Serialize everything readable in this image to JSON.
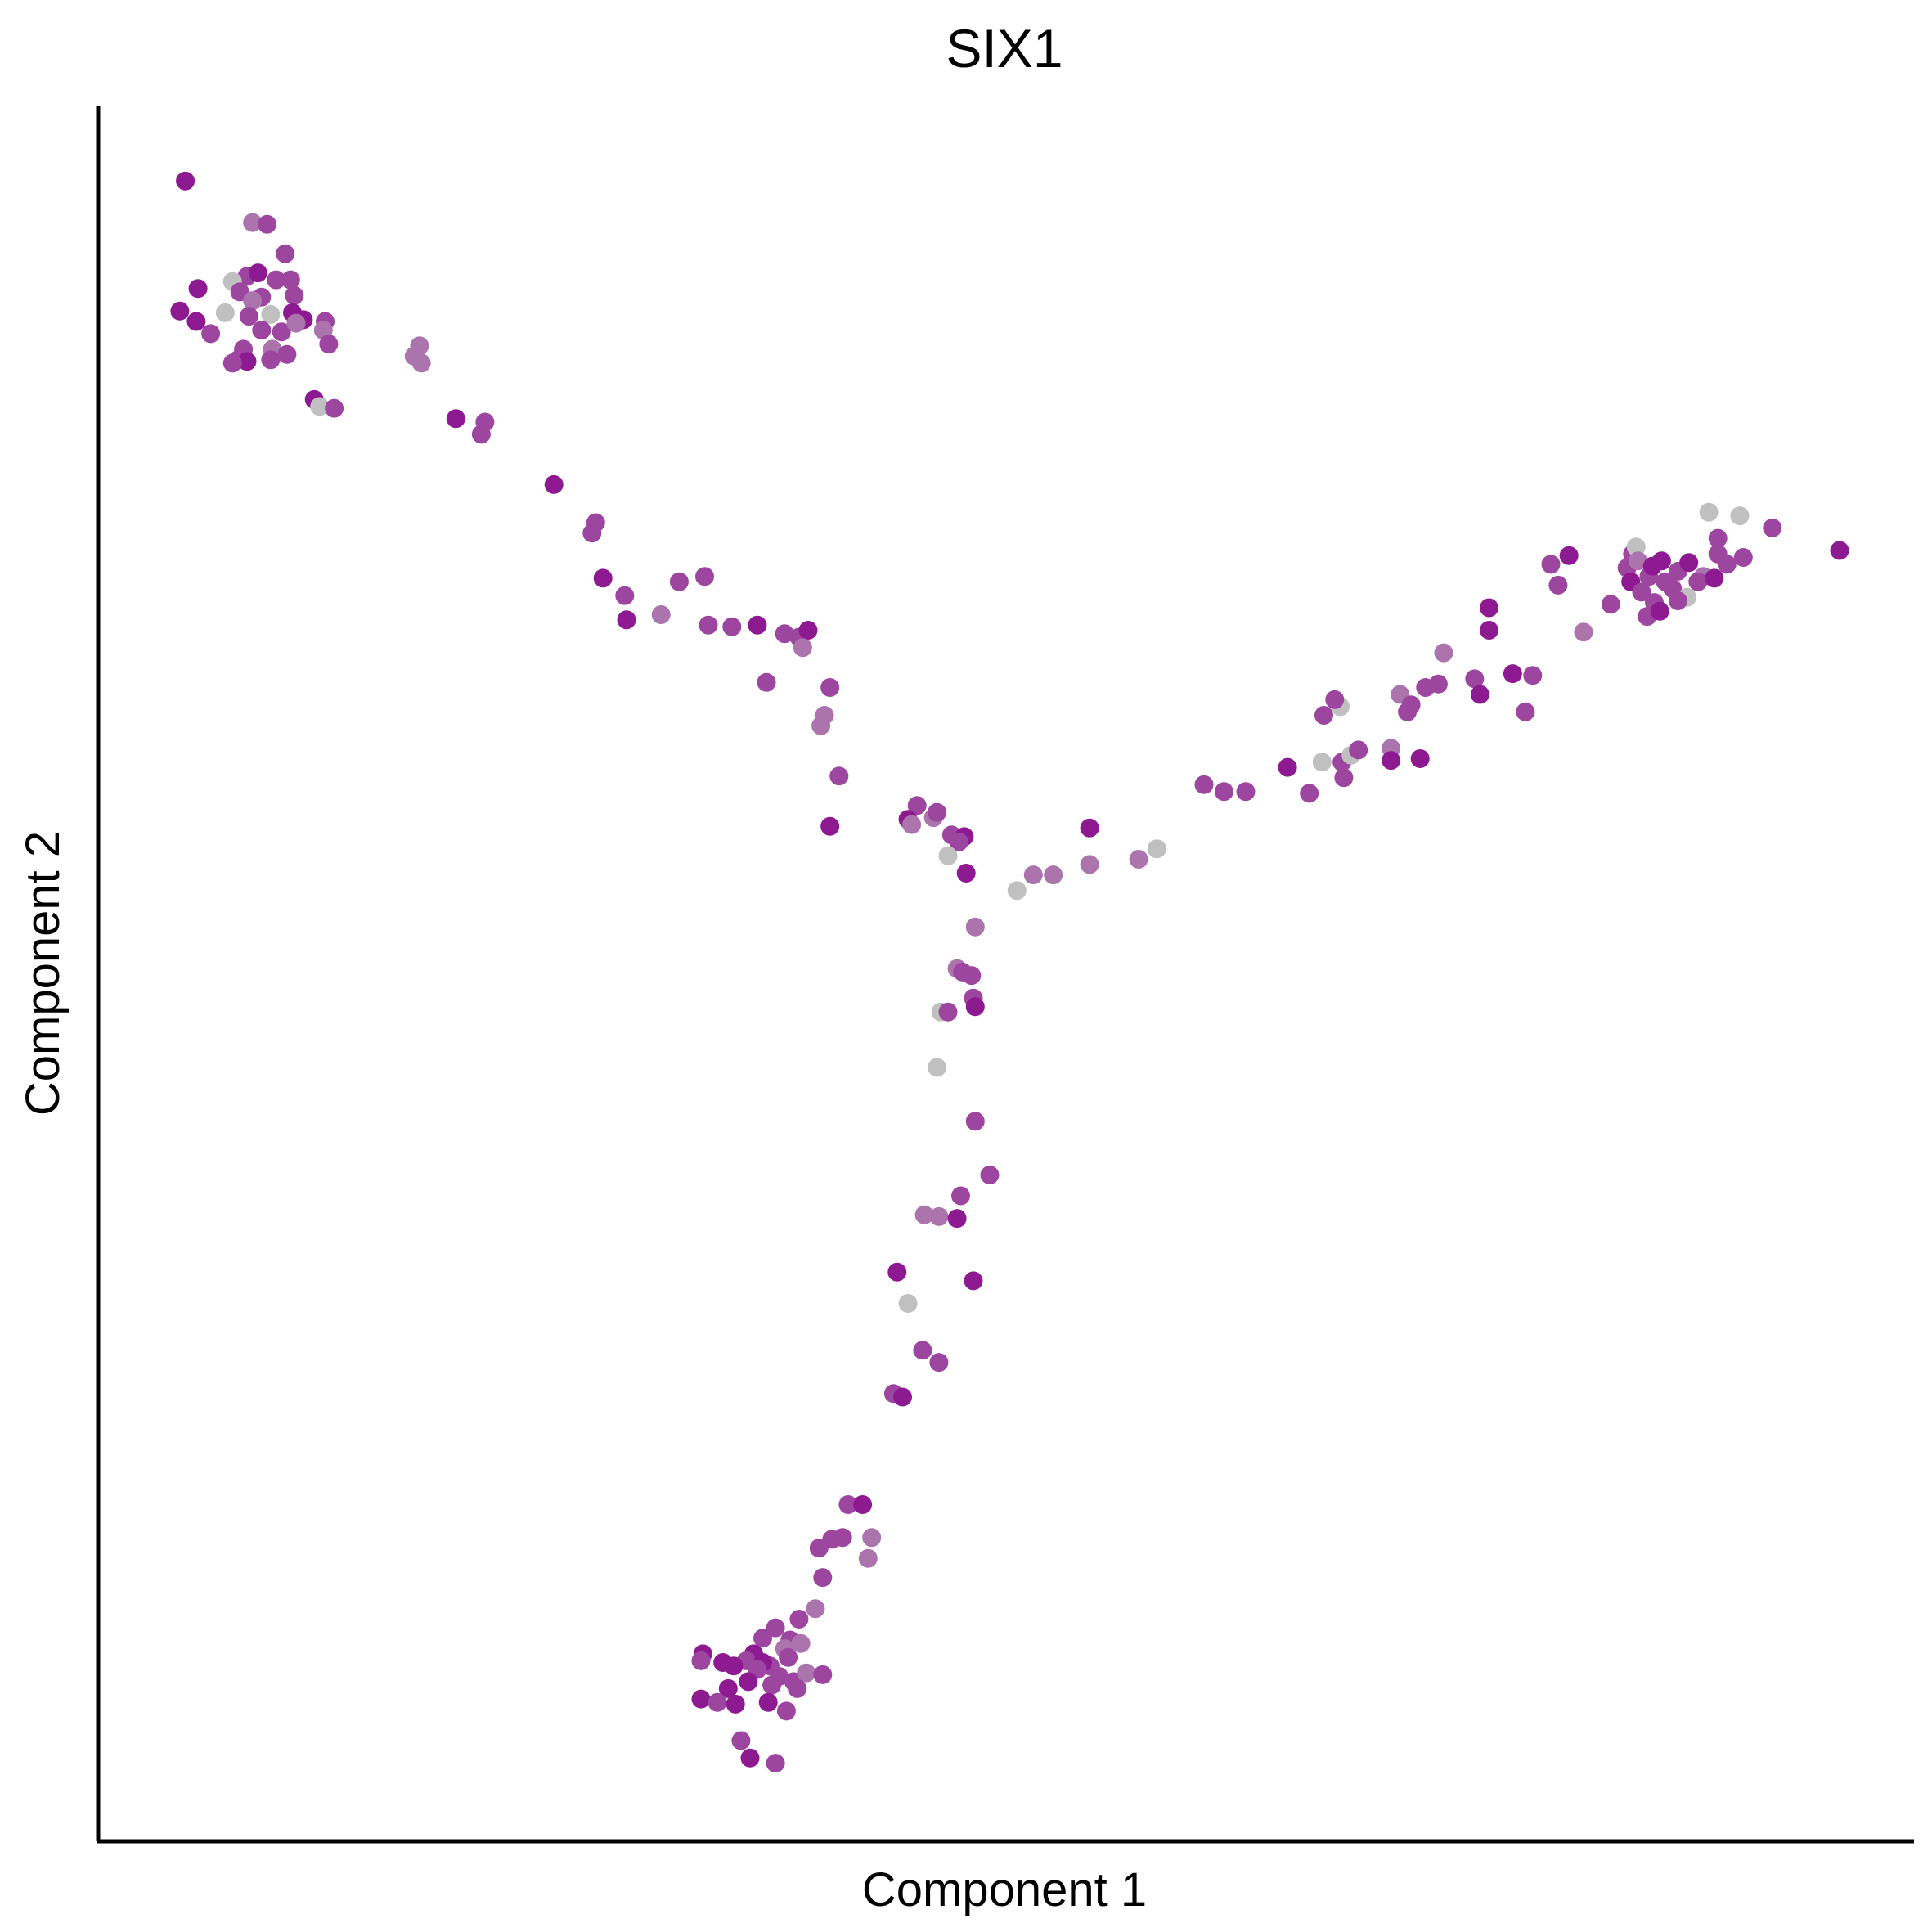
{
  "chart_data": {
    "type": "scatter",
    "title": "SIX1",
    "xlabel": "Component 1",
    "ylabel": "Component 2",
    "xlim": [
      0,
      100
    ],
    "ylim": [
      0,
      100
    ],
    "ticks": false,
    "grid": false,
    "legend": "none",
    "colors": {
      "high": "#8e1a92",
      "mid": "#9c46a0",
      "low": "#ab74ad",
      "zero": "#c0c0c0",
      "axis": "#000000",
      "background": "#ffffff"
    },
    "points": [
      {
        "x": 4.8,
        "y": 95.7,
        "level": "high"
      },
      {
        "x": 8.5,
        "y": 93.3,
        "level": "low"
      },
      {
        "x": 9.3,
        "y": 93.2,
        "level": "mid"
      },
      {
        "x": 10.3,
        "y": 91.5,
        "level": "mid"
      },
      {
        "x": 8.2,
        "y": 90.2,
        "level": "mid"
      },
      {
        "x": 8.8,
        "y": 90.4,
        "level": "high"
      },
      {
        "x": 7.4,
        "y": 89.9,
        "level": "zero"
      },
      {
        "x": 9.8,
        "y": 90.0,
        "level": "mid"
      },
      {
        "x": 10.6,
        "y": 90.0,
        "level": "mid"
      },
      {
        "x": 5.5,
        "y": 89.5,
        "level": "high"
      },
      {
        "x": 7.8,
        "y": 89.3,
        "level": "mid"
      },
      {
        "x": 9.0,
        "y": 89.0,
        "level": "mid"
      },
      {
        "x": 10.8,
        "y": 89.1,
        "level": "mid"
      },
      {
        "x": 8.5,
        "y": 88.8,
        "level": "low"
      },
      {
        "x": 4.5,
        "y": 88.2,
        "level": "high"
      },
      {
        "x": 7.0,
        "y": 88.1,
        "level": "zero"
      },
      {
        "x": 8.3,
        "y": 87.9,
        "level": "mid"
      },
      {
        "x": 9.5,
        "y": 88.0,
        "level": "zero"
      },
      {
        "x": 10.7,
        "y": 88.1,
        "level": "high"
      },
      {
        "x": 11.3,
        "y": 87.7,
        "level": "high"
      },
      {
        "x": 5.4,
        "y": 87.6,
        "level": "high"
      },
      {
        "x": 6.2,
        "y": 86.9,
        "level": "mid"
      },
      {
        "x": 9.0,
        "y": 87.1,
        "level": "mid"
      },
      {
        "x": 10.1,
        "y": 87.0,
        "level": "mid"
      },
      {
        "x": 12.5,
        "y": 87.6,
        "level": "mid"
      },
      {
        "x": 12.4,
        "y": 87.1,
        "level": "low"
      },
      {
        "x": 10.9,
        "y": 87.5,
        "level": "low"
      },
      {
        "x": 8.0,
        "y": 86.0,
        "level": "mid"
      },
      {
        "x": 9.6,
        "y": 86.0,
        "level": "low"
      },
      {
        "x": 10.4,
        "y": 85.7,
        "level": "mid"
      },
      {
        "x": 12.7,
        "y": 86.3,
        "level": "mid"
      },
      {
        "x": 7.7,
        "y": 85.4,
        "level": "mid"
      },
      {
        "x": 8.2,
        "y": 85.3,
        "level": "high"
      },
      {
        "x": 9.5,
        "y": 85.4,
        "level": "mid"
      },
      {
        "x": 7.4,
        "y": 85.2,
        "level": "mid"
      },
      {
        "x": 11.9,
        "y": 83.1,
        "level": "high"
      },
      {
        "x": 12.2,
        "y": 82.7,
        "level": "zero"
      },
      {
        "x": 13.0,
        "y": 82.6,
        "level": "mid"
      },
      {
        "x": 17.7,
        "y": 86.2,
        "level": "low"
      },
      {
        "x": 17.4,
        "y": 85.6,
        "level": "low"
      },
      {
        "x": 17.8,
        "y": 85.2,
        "level": "low"
      },
      {
        "x": 19.7,
        "y": 82.0,
        "level": "high"
      },
      {
        "x": 21.3,
        "y": 81.8,
        "level": "mid"
      },
      {
        "x": 21.1,
        "y": 81.1,
        "level": "mid"
      },
      {
        "x": 25.1,
        "y": 78.2,
        "level": "high"
      },
      {
        "x": 27.4,
        "y": 76.0,
        "level": "mid"
      },
      {
        "x": 27.2,
        "y": 75.4,
        "level": "mid"
      },
      {
        "x": 27.8,
        "y": 72.8,
        "level": "high"
      },
      {
        "x": 29.0,
        "y": 71.8,
        "level": "mid"
      },
      {
        "x": 29.1,
        "y": 70.4,
        "level": "high"
      },
      {
        "x": 31.0,
        "y": 70.7,
        "level": "low"
      },
      {
        "x": 32.0,
        "y": 72.6,
        "level": "mid"
      },
      {
        "x": 33.4,
        "y": 72.9,
        "level": "mid"
      },
      {
        "x": 33.6,
        "y": 70.1,
        "level": "mid"
      },
      {
        "x": 34.9,
        "y": 70.0,
        "level": "mid"
      },
      {
        "x": 36.3,
        "y": 70.1,
        "level": "high"
      },
      {
        "x": 37.8,
        "y": 69.6,
        "level": "mid"
      },
      {
        "x": 38.6,
        "y": 69.4,
        "level": "mid"
      },
      {
        "x": 39.1,
        "y": 69.8,
        "level": "high"
      },
      {
        "x": 38.8,
        "y": 68.8,
        "level": "low"
      },
      {
        "x": 36.8,
        "y": 66.8,
        "level": "mid"
      },
      {
        "x": 40.3,
        "y": 66.5,
        "level": "mid"
      },
      {
        "x": 40.0,
        "y": 64.9,
        "level": "low"
      },
      {
        "x": 39.8,
        "y": 64.3,
        "level": "low"
      },
      {
        "x": 40.8,
        "y": 61.4,
        "level": "mid"
      },
      {
        "x": 40.3,
        "y": 58.5,
        "level": "high"
      },
      {
        "x": 45.1,
        "y": 59.7,
        "level": "mid"
      },
      {
        "x": 44.6,
        "y": 58.9,
        "level": "high"
      },
      {
        "x": 44.8,
        "y": 58.6,
        "level": "low"
      },
      {
        "x": 46.0,
        "y": 59.0,
        "level": "low"
      },
      {
        "x": 46.2,
        "y": 59.3,
        "level": "mid"
      },
      {
        "x": 47.0,
        "y": 58.0,
        "level": "mid"
      },
      {
        "x": 47.7,
        "y": 57.9,
        "level": "high"
      },
      {
        "x": 47.4,
        "y": 57.6,
        "level": "mid"
      },
      {
        "x": 46.8,
        "y": 56.8,
        "level": "zero"
      },
      {
        "x": 47.8,
        "y": 55.8,
        "level": "high"
      },
      {
        "x": 50.6,
        "y": 54.8,
        "level": "zero"
      },
      {
        "x": 51.5,
        "y": 55.7,
        "level": "low"
      },
      {
        "x": 52.6,
        "y": 55.7,
        "level": "low"
      },
      {
        "x": 54.6,
        "y": 58.4,
        "level": "high"
      },
      {
        "x": 54.6,
        "y": 56.3,
        "level": "low"
      },
      {
        "x": 57.3,
        "y": 56.6,
        "level": "low"
      },
      {
        "x": 58.3,
        "y": 57.2,
        "level": "zero"
      },
      {
        "x": 60.9,
        "y": 60.9,
        "level": "mid"
      },
      {
        "x": 62.0,
        "y": 60.5,
        "level": "mid"
      },
      {
        "x": 63.2,
        "y": 60.5,
        "level": "mid"
      },
      {
        "x": 65.5,
        "y": 61.9,
        "level": "high"
      },
      {
        "x": 66.7,
        "y": 60.4,
        "level": "mid"
      },
      {
        "x": 67.4,
        "y": 62.2,
        "level": "zero"
      },
      {
        "x": 68.5,
        "y": 62.2,
        "level": "mid"
      },
      {
        "x": 69.0,
        "y": 62.6,
        "level": "zero"
      },
      {
        "x": 69.4,
        "y": 62.9,
        "level": "mid"
      },
      {
        "x": 68.6,
        "y": 61.3,
        "level": "mid"
      },
      {
        "x": 68.4,
        "y": 65.4,
        "level": "zero"
      },
      {
        "x": 68.1,
        "y": 65.8,
        "level": "mid"
      },
      {
        "x": 67.5,
        "y": 64.9,
        "level": "mid"
      },
      {
        "x": 71.2,
        "y": 63.0,
        "level": "low"
      },
      {
        "x": 71.2,
        "y": 62.3,
        "level": "high"
      },
      {
        "x": 72.8,
        "y": 62.4,
        "level": "high"
      },
      {
        "x": 71.7,
        "y": 66.1,
        "level": "low"
      },
      {
        "x": 72.3,
        "y": 65.5,
        "level": "mid"
      },
      {
        "x": 72.1,
        "y": 65.1,
        "level": "mid"
      },
      {
        "x": 73.1,
        "y": 66.5,
        "level": "mid"
      },
      {
        "x": 73.8,
        "y": 66.7,
        "level": "mid"
      },
      {
        "x": 74.1,
        "y": 68.5,
        "level": "low"
      },
      {
        "x": 75.8,
        "y": 67.0,
        "level": "mid"
      },
      {
        "x": 76.1,
        "y": 66.1,
        "level": "high"
      },
      {
        "x": 76.6,
        "y": 71.1,
        "level": "high"
      },
      {
        "x": 76.6,
        "y": 69.8,
        "level": "high"
      },
      {
        "x": 77.9,
        "y": 67.3,
        "level": "high"
      },
      {
        "x": 79.0,
        "y": 67.2,
        "level": "mid"
      },
      {
        "x": 78.6,
        "y": 65.1,
        "level": "mid"
      },
      {
        "x": 80.0,
        "y": 73.6,
        "level": "mid"
      },
      {
        "x": 80.4,
        "y": 72.4,
        "level": "mid"
      },
      {
        "x": 81.0,
        "y": 74.1,
        "level": "high"
      },
      {
        "x": 81.8,
        "y": 69.7,
        "level": "low"
      },
      {
        "x": 83.3,
        "y": 71.3,
        "level": "mid"
      },
      {
        "x": 84.2,
        "y": 73.4,
        "level": "mid"
      },
      {
        "x": 84.5,
        "y": 74.2,
        "level": "mid"
      },
      {
        "x": 84.7,
        "y": 74.6,
        "level": "zero"
      },
      {
        "x": 84.8,
        "y": 73.8,
        "level": "low"
      },
      {
        "x": 84.4,
        "y": 72.6,
        "level": "high"
      },
      {
        "x": 85.0,
        "y": 72.0,
        "level": "mid"
      },
      {
        "x": 85.4,
        "y": 72.9,
        "level": "mid"
      },
      {
        "x": 85.6,
        "y": 73.5,
        "level": "high"
      },
      {
        "x": 85.7,
        "y": 71.4,
        "level": "mid"
      },
      {
        "x": 85.3,
        "y": 70.6,
        "level": "mid"
      },
      {
        "x": 86.0,
        "y": 70.9,
        "level": "high"
      },
      {
        "x": 86.3,
        "y": 72.6,
        "level": "mid"
      },
      {
        "x": 86.1,
        "y": 73.8,
        "level": "high"
      },
      {
        "x": 86.7,
        "y": 72.2,
        "level": "mid"
      },
      {
        "x": 87.0,
        "y": 73.2,
        "level": "mid"
      },
      {
        "x": 87.5,
        "y": 71.7,
        "level": "zero"
      },
      {
        "x": 87.0,
        "y": 71.5,
        "level": "mid"
      },
      {
        "x": 87.6,
        "y": 73.7,
        "level": "high"
      },
      {
        "x": 88.4,
        "y": 72.9,
        "level": "low"
      },
      {
        "x": 88.1,
        "y": 72.6,
        "level": "mid"
      },
      {
        "x": 89.0,
        "y": 72.8,
        "level": "high"
      },
      {
        "x": 89.2,
        "y": 74.2,
        "level": "mid"
      },
      {
        "x": 89.7,
        "y": 73.6,
        "level": "mid"
      },
      {
        "x": 89.2,
        "y": 75.1,
        "level": "mid"
      },
      {
        "x": 88.7,
        "y": 76.6,
        "level": "zero"
      },
      {
        "x": 90.4,
        "y": 76.4,
        "level": "zero"
      },
      {
        "x": 92.2,
        "y": 75.7,
        "level": "mid"
      },
      {
        "x": 95.9,
        "y": 74.4,
        "level": "high"
      },
      {
        "x": 90.6,
        "y": 74.0,
        "level": "mid"
      },
      {
        "x": 48.3,
        "y": 52.7,
        "level": "low"
      },
      {
        "x": 47.3,
        "y": 50.3,
        "level": "low"
      },
      {
        "x": 47.6,
        "y": 50.1,
        "level": "mid"
      },
      {
        "x": 48.1,
        "y": 49.9,
        "level": "mid"
      },
      {
        "x": 48.2,
        "y": 48.6,
        "level": "mid"
      },
      {
        "x": 46.4,
        "y": 47.8,
        "level": "zero"
      },
      {
        "x": 46.8,
        "y": 47.8,
        "level": "mid"
      },
      {
        "x": 48.3,
        "y": 48.1,
        "level": "high"
      },
      {
        "x": 46.2,
        "y": 44.6,
        "level": "zero"
      },
      {
        "x": 48.3,
        "y": 41.5,
        "level": "mid"
      },
      {
        "x": 49.1,
        "y": 38.4,
        "level": "mid"
      },
      {
        "x": 47.5,
        "y": 37.2,
        "level": "mid"
      },
      {
        "x": 45.5,
        "y": 36.1,
        "level": "low"
      },
      {
        "x": 46.3,
        "y": 36.0,
        "level": "low"
      },
      {
        "x": 47.3,
        "y": 35.9,
        "level": "high"
      },
      {
        "x": 48.2,
        "y": 32.3,
        "level": "high"
      },
      {
        "x": 44.0,
        "y": 32.8,
        "level": "high"
      },
      {
        "x": 44.6,
        "y": 31.0,
        "level": "zero"
      },
      {
        "x": 45.4,
        "y": 28.3,
        "level": "mid"
      },
      {
        "x": 46.3,
        "y": 27.6,
        "level": "mid"
      },
      {
        "x": 43.8,
        "y": 25.8,
        "level": "mid"
      },
      {
        "x": 44.3,
        "y": 25.6,
        "level": "high"
      },
      {
        "x": 41.3,
        "y": 19.4,
        "level": "mid"
      },
      {
        "x": 42.1,
        "y": 19.4,
        "level": "high"
      },
      {
        "x": 42.6,
        "y": 17.5,
        "level": "low"
      },
      {
        "x": 41.0,
        "y": 17.5,
        "level": "mid"
      },
      {
        "x": 40.4,
        "y": 17.4,
        "level": "mid"
      },
      {
        "x": 39.7,
        "y": 16.9,
        "level": "mid"
      },
      {
        "x": 39.9,
        "y": 15.2,
        "level": "mid"
      },
      {
        "x": 42.4,
        "y": 16.3,
        "level": "low"
      },
      {
        "x": 39.5,
        "y": 13.4,
        "level": "low"
      },
      {
        "x": 38.6,
        "y": 12.8,
        "level": "mid"
      },
      {
        "x": 37.3,
        "y": 12.3,
        "level": "mid"
      },
      {
        "x": 38.1,
        "y": 11.6,
        "level": "mid"
      },
      {
        "x": 36.6,
        "y": 11.7,
        "level": "mid"
      },
      {
        "x": 37.8,
        "y": 11.1,
        "level": "low"
      },
      {
        "x": 38.7,
        "y": 11.4,
        "level": "low"
      },
      {
        "x": 38.0,
        "y": 10.6,
        "level": "mid"
      },
      {
        "x": 36.1,
        "y": 10.8,
        "level": "high"
      },
      {
        "x": 35.7,
        "y": 10.4,
        "level": "mid"
      },
      {
        "x": 37.0,
        "y": 10.1,
        "level": "mid"
      },
      {
        "x": 36.6,
        "y": 10.3,
        "level": "high"
      },
      {
        "x": 36.3,
        "y": 9.9,
        "level": "mid"
      },
      {
        "x": 37.5,
        "y": 9.5,
        "level": "mid"
      },
      {
        "x": 38.3,
        "y": 9.2,
        "level": "mid"
      },
      {
        "x": 39.0,
        "y": 9.7,
        "level": "low"
      },
      {
        "x": 39.9,
        "y": 9.6,
        "level": "mid"
      },
      {
        "x": 35.8,
        "y": 9.2,
        "level": "high"
      },
      {
        "x": 37.1,
        "y": 9.0,
        "level": "mid"
      },
      {
        "x": 38.5,
        "y": 8.8,
        "level": "mid"
      },
      {
        "x": 33.3,
        "y": 10.8,
        "level": "high"
      },
      {
        "x": 33.2,
        "y": 10.4,
        "level": "mid"
      },
      {
        "x": 34.4,
        "y": 10.3,
        "level": "high"
      },
      {
        "x": 35.0,
        "y": 10.1,
        "level": "high"
      },
      {
        "x": 34.7,
        "y": 8.8,
        "level": "high"
      },
      {
        "x": 33.2,
        "y": 8.2,
        "level": "high"
      },
      {
        "x": 34.1,
        "y": 8.0,
        "level": "mid"
      },
      {
        "x": 35.1,
        "y": 7.9,
        "level": "high"
      },
      {
        "x": 36.9,
        "y": 8.0,
        "level": "high"
      },
      {
        "x": 37.9,
        "y": 7.5,
        "level": "mid"
      },
      {
        "x": 35.4,
        "y": 5.8,
        "level": "mid"
      },
      {
        "x": 35.9,
        "y": 4.8,
        "level": "high"
      },
      {
        "x": 37.3,
        "y": 4.5,
        "level": "mid"
      }
    ]
  }
}
